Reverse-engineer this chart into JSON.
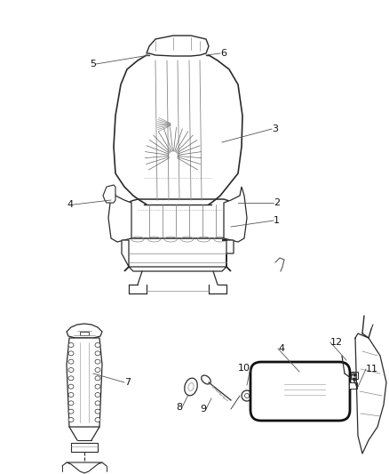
{
  "bg_color": "#ffffff",
  "line_color": "#2a2a2a",
  "light_line": "#888888",
  "very_light": "#bbbbbb",
  "fig_width": 4.38,
  "fig_height": 5.33,
  "dpi": 100
}
